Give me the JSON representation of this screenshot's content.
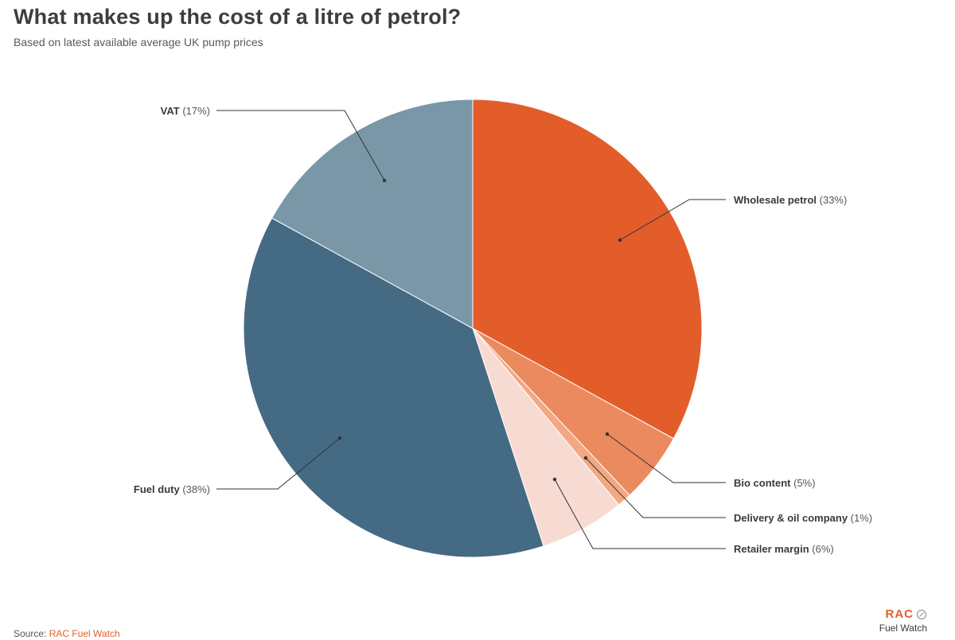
{
  "header": {
    "title": "What makes up the cost of a litre of petrol?",
    "subtitle": "Based on latest available average UK pump prices"
  },
  "footer": {
    "source_prefix": "Source: ",
    "source_link": "RAC Fuel Watch",
    "brand_mark": "RAC",
    "brand_sub": "Fuel Watch"
  },
  "chart_data": {
    "type": "pie",
    "start_angle_deg": 0,
    "direction": "clockwise",
    "slices": [
      {
        "name": "Wholesale petrol",
        "value": 33,
        "pct_label": "(33%)",
        "color": "#e35d2b"
      },
      {
        "name": "Bio content",
        "value": 5,
        "pct_label": "(5%)",
        "color": "#eb8a5e"
      },
      {
        "name": "Delivery & oil company",
        "value": 1,
        "pct_label": "(1%)",
        "color": "#f2a882"
      },
      {
        "name": "Retailer margin",
        "value": 6,
        "pct_label": "(6%)",
        "color": "#f7dbd2"
      },
      {
        "name": "Fuel duty",
        "value": 38,
        "pct_label": "(38%)",
        "color": "#456a84"
      },
      {
        "name": "VAT",
        "value": 17,
        "pct_label": "(17%)",
        "color": "#7a97a8"
      }
    ]
  }
}
